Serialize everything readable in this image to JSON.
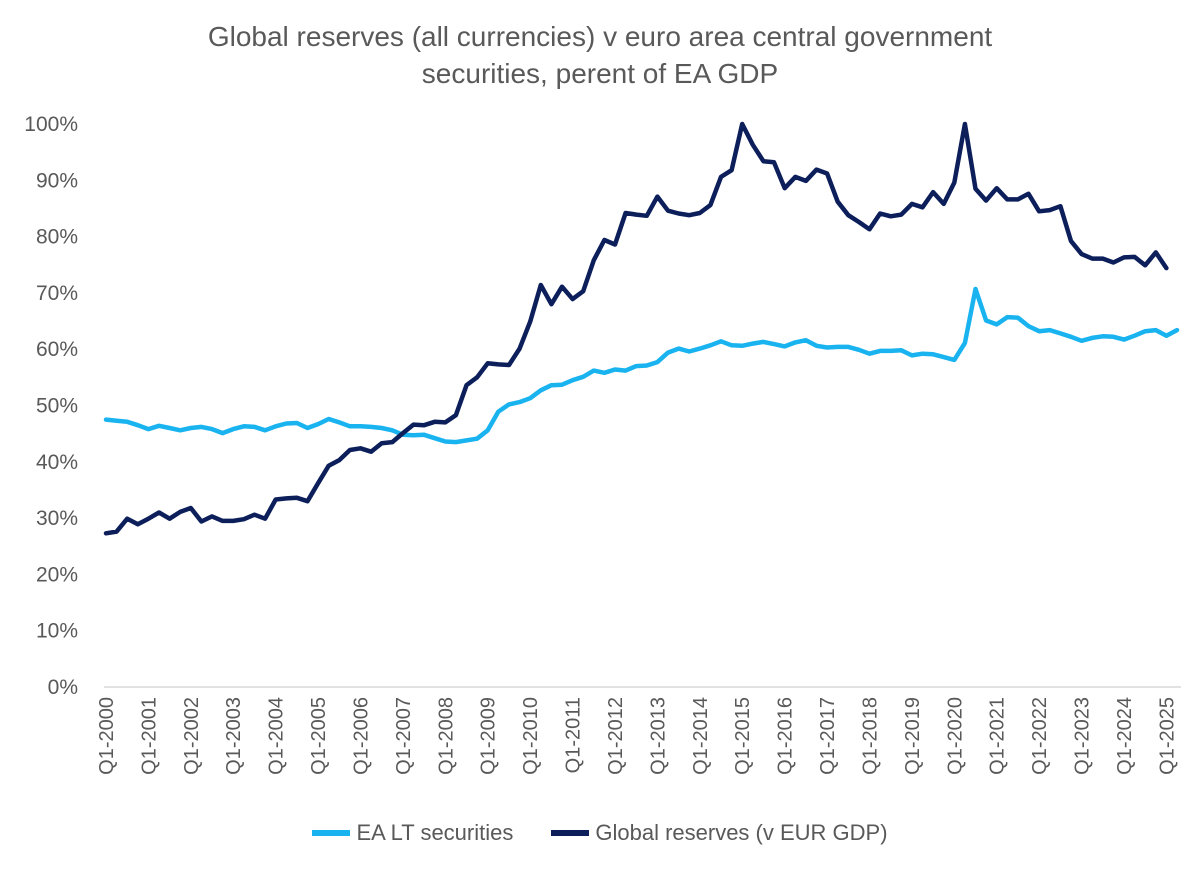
{
  "chart_data": {
    "type": "line",
    "title": "Global reserves (all currencies) v euro area central government securities, perent of EA GDP",
    "title_lines": [
      "Global reserves (all currencies) v euro area central government",
      "securities, perent of EA GDP"
    ],
    "ylim": [
      0,
      100
    ],
    "y_ticks": [
      0,
      10,
      20,
      30,
      40,
      50,
      60,
      70,
      80,
      90,
      100
    ],
    "y_tick_labels": [
      "0%",
      "10%",
      "20%",
      "30%",
      "40%",
      "50%",
      "60%",
      "70%",
      "80%",
      "90%",
      "100%"
    ],
    "x_tick_labels": [
      "Q1-2000",
      "Q1-2001",
      "Q1-2002",
      "Q1-2003",
      "Q1-2004",
      "Q1-2005",
      "Q1-2006",
      "Q1-2007",
      "Q1-2008",
      "Q1-2009",
      "Q1-2010",
      "Q1-2011",
      "Q1-2012",
      "Q1-2013",
      "Q1-2014",
      "Q1-2015",
      "Q1-2016",
      "Q1-2017",
      "Q1-2018",
      "Q1-2019",
      "Q1-2020",
      "Q1-2021",
      "Q1-2022",
      "Q1-2023",
      "Q1-2024",
      "Q1-2025"
    ],
    "x_start": "Q1-2000",
    "frequency": "quarterly",
    "grid": false,
    "legend_position": "bottom",
    "series": [
      {
        "name": "EA LT securities",
        "color": "#19b3f0",
        "values": [
          47.5,
          47.3,
          47.1,
          46.5,
          45.8,
          46.4,
          46.0,
          45.6,
          46.0,
          46.2,
          45.8,
          45.1,
          45.8,
          46.3,
          46.2,
          45.6,
          46.3,
          46.8,
          46.9,
          46.0,
          46.7,
          47.6,
          47.0,
          46.3,
          46.3,
          46.2,
          46.0,
          45.6,
          44.8,
          44.7,
          44.8,
          44.2,
          43.6,
          43.5,
          43.8,
          44.1,
          45.6,
          48.9,
          50.2,
          50.6,
          51.3,
          52.7,
          53.6,
          53.7,
          54.5,
          55.1,
          56.2,
          55.8,
          56.4,
          56.2,
          57.0,
          57.1,
          57.7,
          59.4,
          60.1,
          59.6,
          60.1,
          60.7,
          61.4,
          60.7,
          60.6,
          61.0,
          61.3,
          60.9,
          60.5,
          61.2,
          61.6,
          60.6,
          60.3,
          60.4,
          60.4,
          59.9,
          59.2,
          59.7,
          59.7,
          59.8,
          58.9,
          59.2,
          59.1,
          58.6,
          58.1,
          61.1,
          70.7,
          65.1,
          64.4,
          65.7,
          65.6,
          64.1,
          63.2,
          63.4,
          62.8,
          62.2,
          61.5,
          62.0,
          62.3,
          62.2,
          61.7,
          62.4,
          63.2,
          63.4,
          62.4,
          63.4
        ]
      },
      {
        "name": "Global reserves (v EUR GDP)",
        "color": "#0c1f5b",
        "values": [
          27.3,
          27.6,
          29.9,
          28.9,
          29.9,
          31.0,
          29.9,
          31.1,
          31.8,
          29.4,
          30.3,
          29.5,
          29.5,
          29.8,
          30.6,
          29.9,
          33.3,
          33.5,
          33.6,
          33.0,
          36.2,
          39.3,
          40.3,
          42.1,
          42.4,
          41.8,
          43.3,
          43.5,
          45.1,
          46.6,
          46.5,
          47.1,
          47.0,
          48.3,
          53.6,
          55.0,
          57.5,
          57.3,
          57.2,
          60.1,
          64.9,
          71.4,
          68.0,
          71.1,
          68.9,
          70.3,
          75.8,
          79.4,
          78.6,
          84.2,
          83.9,
          83.7,
          87.1,
          84.6,
          84.1,
          83.8,
          84.2,
          85.6,
          90.6,
          91.8,
          100.0,
          96.3,
          93.4,
          93.2,
          88.6,
          90.6,
          89.9,
          91.9,
          91.2,
          86.2,
          83.8,
          82.6,
          81.3,
          84.1,
          83.6,
          83.9,
          85.8,
          85.2,
          87.9,
          85.8,
          89.6,
          100.0,
          88.5,
          86.4,
          88.6,
          86.6,
          86.6,
          87.6,
          84.5,
          84.7,
          85.4,
          79.2,
          76.9,
          76.1,
          76.1,
          75.4,
          76.3,
          76.4,
          74.9,
          77.2,
          74.4
        ]
      }
    ]
  }
}
